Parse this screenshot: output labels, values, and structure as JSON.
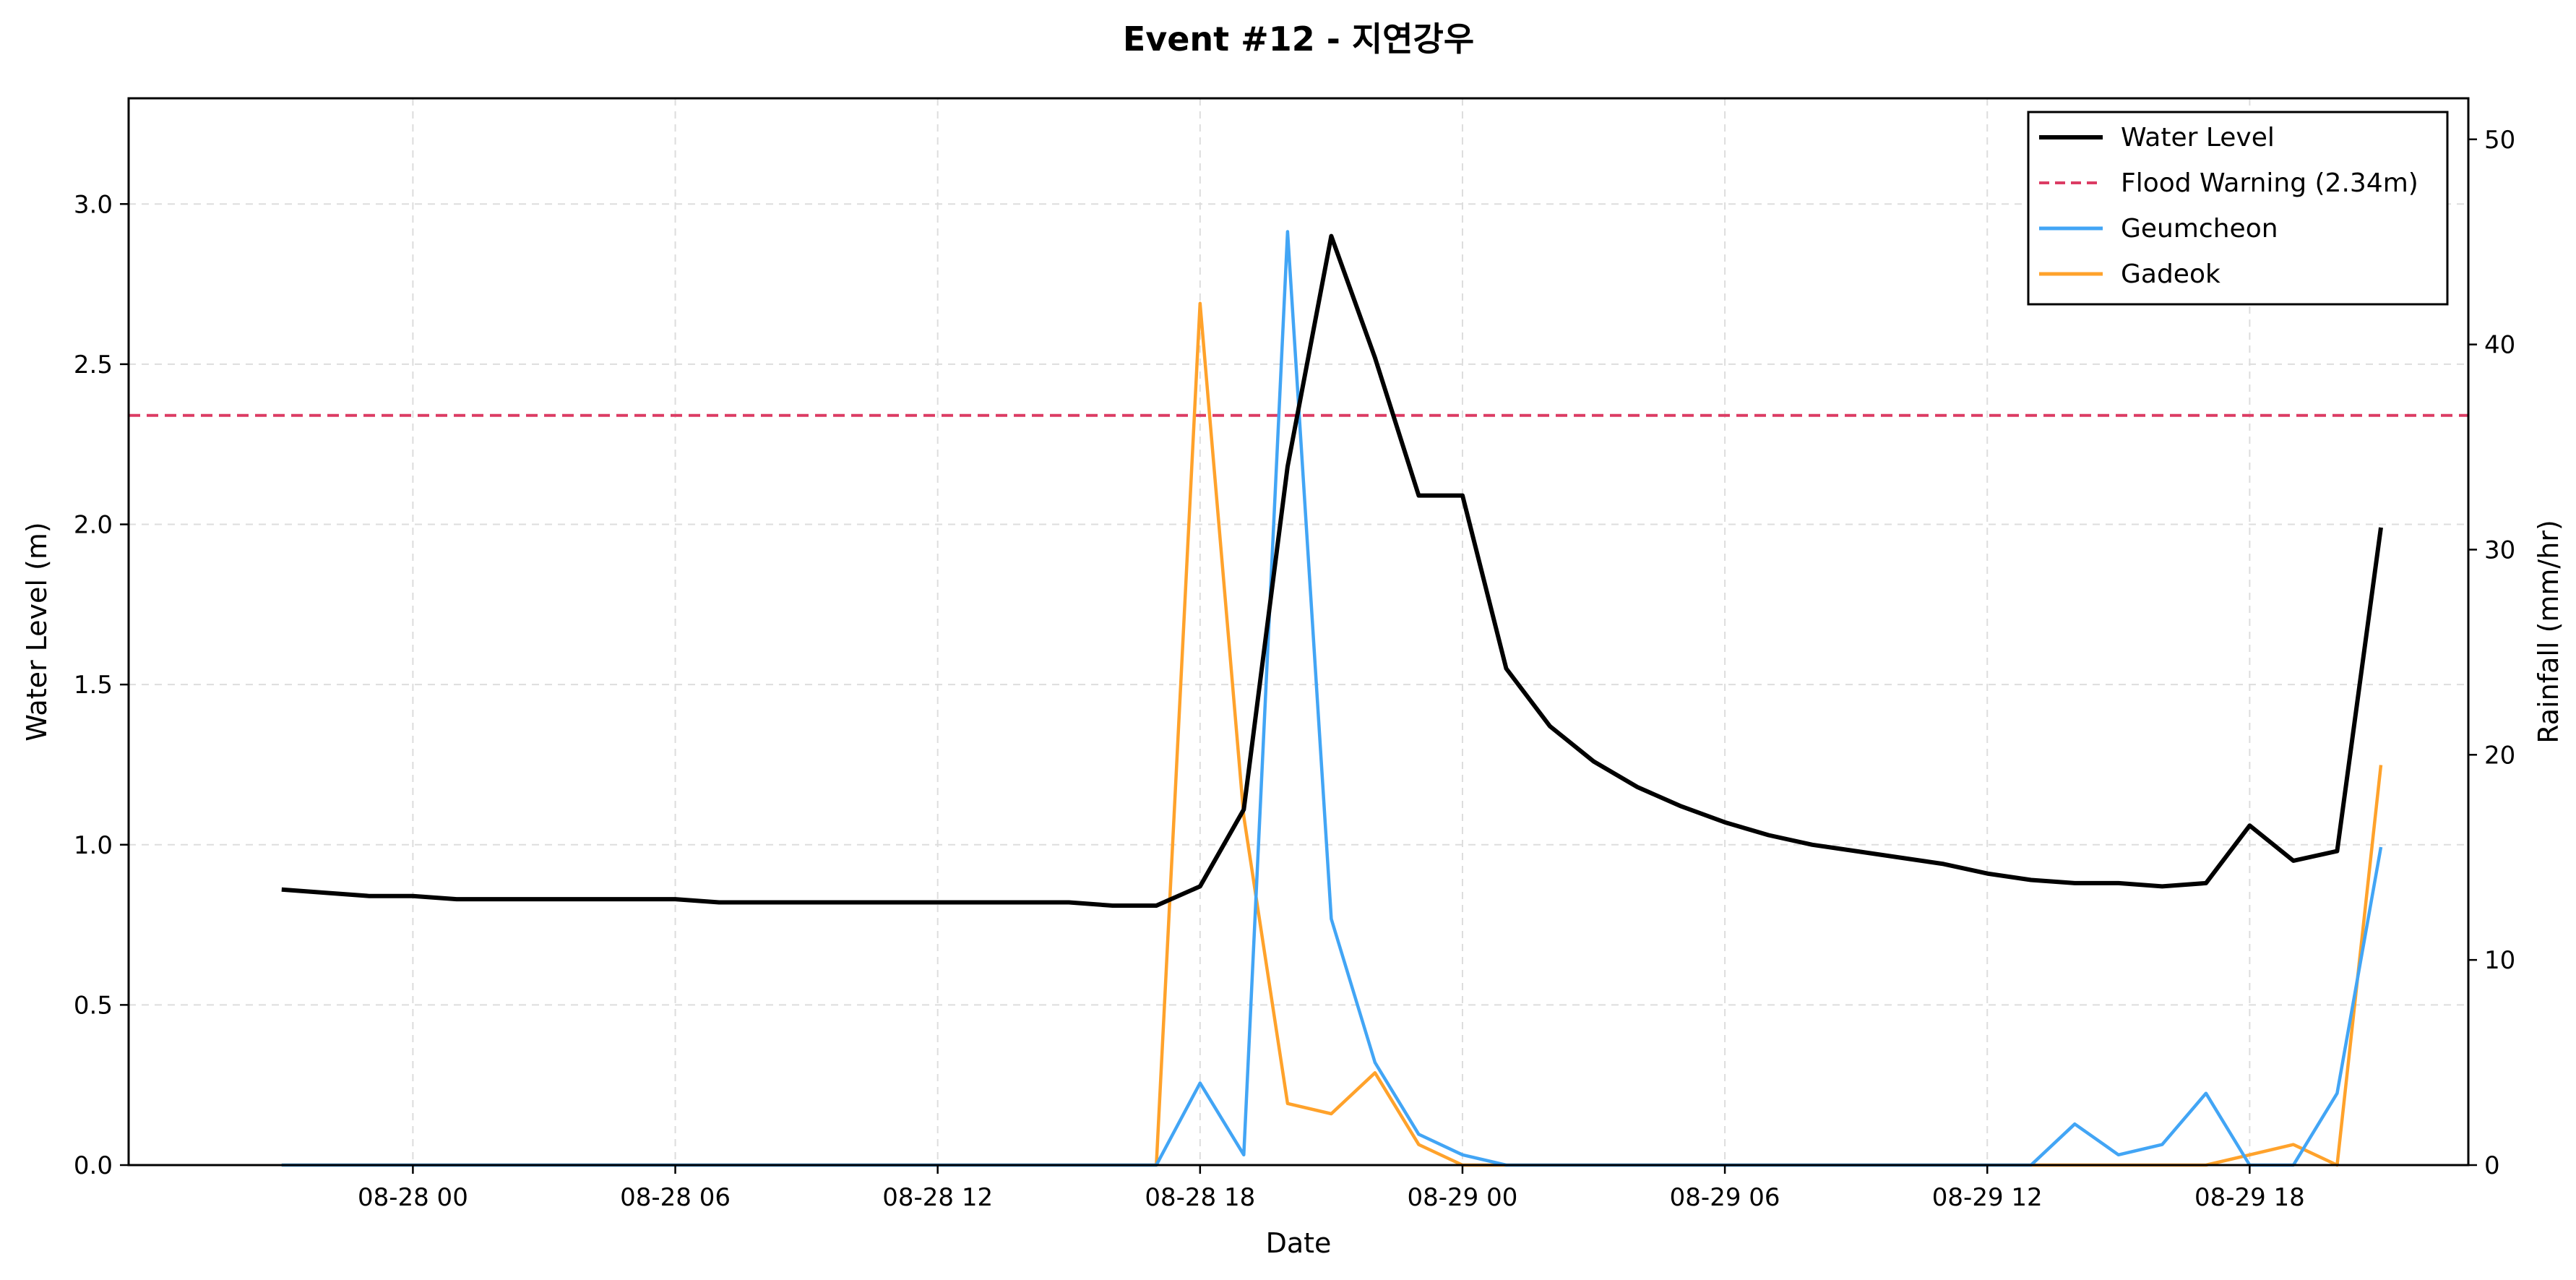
{
  "chart_data": {
    "type": "line",
    "title": "Event #12 - 지연강우",
    "xlabel": "Date",
    "ylabel_left": "Water Level (m)",
    "ylabel_right": "Rainfall (mm/hr)",
    "x_ticks": [
      "08-28 00",
      "08-28 06",
      "08-28 12",
      "08-28 18",
      "08-29 00",
      "08-29 06",
      "08-29 12",
      "08-29 18"
    ],
    "x_range": [
      "08-27 17:30",
      "08-29 23:00"
    ],
    "ylim_left": [
      0,
      3.33
    ],
    "ylim_right": [
      0,
      52
    ],
    "y_ticks_left": [
      "0.0",
      "0.5",
      "1.0",
      "1.5",
      "2.0",
      "2.5",
      "3.0"
    ],
    "y_ticks_right": [
      "0",
      "10",
      "20",
      "30",
      "40",
      "50"
    ],
    "grid": true,
    "legend_position": "top-right",
    "x": [
      "08-27 21",
      "08-27 22",
      "08-27 23",
      "08-28 00",
      "08-28 01",
      "08-28 02",
      "08-28 03",
      "08-28 04",
      "08-28 05",
      "08-28 06",
      "08-28 07",
      "08-28 08",
      "08-28 09",
      "08-28 10",
      "08-28 11",
      "08-28 12",
      "08-28 13",
      "08-28 14",
      "08-28 15",
      "08-28 16",
      "08-28 17",
      "08-28 18",
      "08-28 19",
      "08-28 20",
      "08-28 21",
      "08-28 22",
      "08-28 23",
      "08-29 00",
      "08-29 01",
      "08-29 02",
      "08-29 03",
      "08-29 04",
      "08-29 05",
      "08-29 06",
      "08-29 07",
      "08-29 08",
      "08-29 09",
      "08-29 10",
      "08-29 11",
      "08-29 12",
      "08-29 13",
      "08-29 14",
      "08-29 15",
      "08-29 16",
      "08-29 17",
      "08-29 18",
      "08-29 19",
      "08-29 20",
      "08-29 21"
    ],
    "series": [
      {
        "name": "Water Level",
        "axis": "left",
        "color": "#000000",
        "style": "solid",
        "values": [
          0.86,
          0.85,
          0.84,
          0.84,
          0.83,
          0.83,
          0.83,
          0.83,
          0.83,
          0.83,
          0.82,
          0.82,
          0.82,
          0.82,
          0.82,
          0.82,
          0.82,
          0.82,
          0.82,
          0.81,
          0.81,
          0.87,
          1.11,
          2.18,
          2.9,
          2.52,
          2.09,
          2.09,
          1.55,
          1.37,
          1.26,
          1.18,
          1.12,
          1.07,
          1.03,
          1.0,
          0.98,
          0.96,
          0.94,
          0.91,
          0.89,
          0.88,
          0.88,
          0.87,
          0.88,
          1.06,
          0.95,
          0.98,
          1.99
        ]
      },
      {
        "name": "Geumcheon",
        "axis": "right",
        "color": "#42a5f5",
        "style": "solid",
        "values": [
          0,
          0,
          0,
          0,
          0,
          0,
          0,
          0,
          0,
          0,
          0,
          0,
          0,
          0,
          0,
          0,
          0,
          0,
          0,
          0,
          0,
          4.0,
          0.5,
          45.5,
          12.0,
          5.0,
          1.5,
          0.5,
          0,
          0,
          0,
          0,
          0,
          0,
          0,
          0,
          0,
          0,
          0,
          0,
          0,
          2.0,
          0.5,
          1.0,
          3.5,
          0,
          0,
          3.5,
          15.5
        ]
      },
      {
        "name": "Gadeok",
        "axis": "right",
        "color": "#ffa22b",
        "style": "solid",
        "values": [
          0,
          0,
          0,
          0,
          0,
          0,
          0,
          0,
          0,
          0,
          0,
          0,
          0,
          0,
          0,
          0,
          0,
          0,
          0,
          0,
          0,
          42.0,
          17.0,
          3.0,
          2.5,
          4.5,
          1.0,
          0,
          0,
          0,
          0,
          0,
          0,
          0,
          0,
          0,
          0,
          0,
          0,
          0,
          0,
          0,
          0,
          0,
          0,
          0.5,
          1.0,
          0,
          19.5
        ]
      }
    ],
    "reference_lines": [
      {
        "name": "Flood Warning (2.34m)",
        "axis": "left",
        "value": 2.34,
        "color": "#dc3c64",
        "style": "dashed"
      }
    ]
  }
}
